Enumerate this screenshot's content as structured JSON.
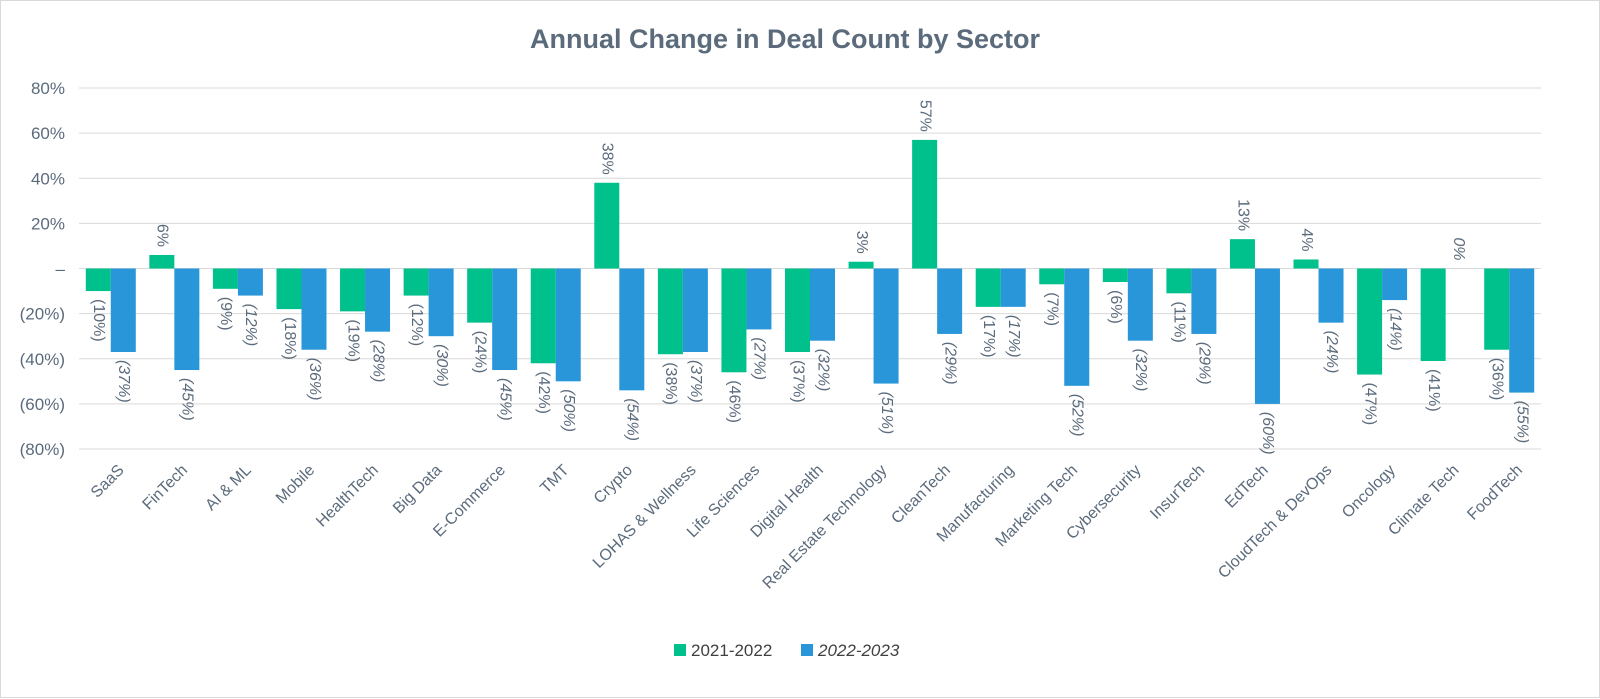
{
  "chart_data": {
    "type": "bar",
    "title": "Annual Change in Deal Count by Sector",
    "xlabel": "",
    "ylabel": "",
    "ylim": [
      -80,
      80
    ],
    "yticks": [
      {
        "value": 80,
        "label": "80%"
      },
      {
        "value": 60,
        "label": "60%"
      },
      {
        "value": 40,
        "label": "40%"
      },
      {
        "value": 20,
        "label": "20%"
      },
      {
        "value": 0,
        "label": "–"
      },
      {
        "value": -20,
        "label": "(20%)"
      },
      {
        "value": -40,
        "label": "(40%)"
      },
      {
        "value": -60,
        "label": "(60%)"
      },
      {
        "value": -80,
        "label": "(80%)"
      }
    ],
    "grid": true,
    "legend_position": "bottom",
    "categories": [
      "SaaS",
      "FinTech",
      "AI & ML",
      "Mobile",
      "HealthTech",
      "Big Data",
      "E-Commerce",
      "TMT",
      "Crypto",
      "LOHAS & Wellness",
      "Life Sciences",
      "Digital Health",
      "Real Estate Technology",
      "CleanTech",
      "Manufacturing",
      "Marketing Tech",
      "Cybersecurity",
      "InsurTech",
      "EdTech",
      "CloudTech & DevOps",
      "Oncology",
      "Climate Tech",
      "FoodTech"
    ],
    "series": [
      {
        "name": "2021-2022",
        "color": "#00c08b",
        "values": [
          -10,
          6,
          -9,
          -18,
          -19,
          -12,
          -24,
          -42,
          38,
          -38,
          -46,
          -37,
          3,
          57,
          -17,
          -7,
          -6,
          -11,
          13,
          4,
          -47,
          -41,
          -36
        ],
        "labels": [
          "(10%)",
          "6%",
          "(9%)",
          "(18%)",
          "(19%)",
          "(12%)",
          "(24%)",
          "(42%)",
          "38%",
          "(38%)",
          "(46%)",
          "(37%)",
          "3%",
          "57%",
          "(17%)",
          "(7%)",
          "(6%)",
          "(11%)",
          "13%",
          "4%",
          "(47%)",
          "(41%)",
          "(36%)"
        ]
      },
      {
        "name": "2022-2023",
        "color": "#2896d8",
        "values": [
          -37,
          -45,
          -12,
          -36,
          -28,
          -30,
          -45,
          -50,
          -54,
          -37,
          -27,
          -32,
          -51,
          -29,
          -17,
          -52,
          -32,
          -29,
          -60,
          -24,
          -14,
          0,
          -55
        ],
        "labels": [
          "(37%)",
          "(45%)",
          "(12%)",
          "(36%)",
          "(28%)",
          "(30%)",
          "(45%)",
          "(50%)",
          "(54%)",
          "(37%)",
          "(27%)",
          "(32%)",
          "(51%)",
          "(29%)",
          "(17%)",
          "(52%)",
          "(32%)",
          "(29%)",
          "(60%)",
          "(24%)",
          "(14%)",
          "0%",
          "(55%)"
        ]
      }
    ]
  }
}
